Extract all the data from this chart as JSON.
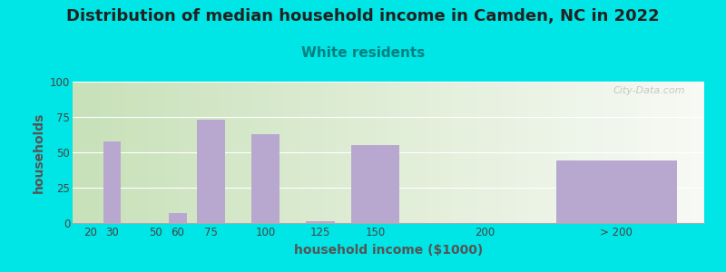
{
  "title": "Distribution of median household income in Camden, NC in 2022",
  "subtitle": "White residents",
  "xlabel": "household income ($1000)",
  "ylabel": "households",
  "bar_color": "#b8a8d0",
  "background_outer": "#00e5e5",
  "background_inner_left": "#c8dbb8",
  "background_inner_right": "#f4f4f4",
  "values": [
    0,
    58,
    0,
    7,
    73,
    63,
    1,
    55,
    0,
    44
  ],
  "bar_positions": [
    20,
    30,
    50,
    60,
    75,
    100,
    125,
    150,
    200,
    260
  ],
  "bar_widths": [
    8,
    8,
    8,
    8,
    13,
    13,
    13,
    22,
    22,
    55
  ],
  "ylim": [
    0,
    100
  ],
  "yticks": [
    0,
    25,
    50,
    75,
    100
  ],
  "xtick_labels": [
    "20",
    "30",
    "50",
    "60",
    "75",
    "100",
    "125",
    "150",
    "200",
    "> 200"
  ],
  "xtick_positions": [
    20,
    30,
    50,
    60,
    75,
    100,
    125,
    150,
    200,
    260
  ],
  "xlim": [
    12,
    300
  ],
  "title_fontsize": 13,
  "subtitle_fontsize": 11,
  "subtitle_color": "#008080",
  "axis_label_fontsize": 10,
  "tick_fontsize": 8.5,
  "ylabel_color": "#555555",
  "xlabel_color": "#555555",
  "watermark_text": "City-Data.com"
}
